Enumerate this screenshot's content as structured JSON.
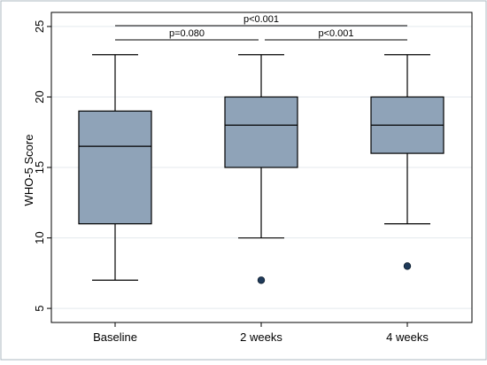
{
  "chart_data": {
    "type": "box",
    "ylabel": "WHO-5 Score",
    "ylim": [
      4,
      26
    ],
    "yticks": [
      5,
      10,
      15,
      20,
      25
    ],
    "grid": true,
    "categories": [
      "Baseline",
      "2 weeks",
      "4 weeks"
    ],
    "boxes": [
      {
        "category": "Baseline",
        "whisker_low": 7,
        "q1": 11,
        "median": 16.5,
        "q3": 19,
        "whisker_high": 23,
        "outliers": []
      },
      {
        "category": "2 weeks",
        "whisker_low": 10,
        "q1": 15,
        "median": 18,
        "q3": 20,
        "whisker_high": 23,
        "outliers": [
          7
        ]
      },
      {
        "category": "4 weeks",
        "whisker_low": 11,
        "q1": 16,
        "median": 18,
        "q3": 20,
        "whisker_high": 23,
        "outliers": [
          8
        ]
      }
    ],
    "comparisons": [
      {
        "from": "Baseline",
        "to": "2 weeks",
        "label": "p=0.080",
        "level": 1
      },
      {
        "from": "2 weeks",
        "to": "4 weeks",
        "label": "p<0.001",
        "level": 1
      },
      {
        "from": "Baseline",
        "to": "4 weeks",
        "label": "p<0.001",
        "level": 2
      }
    ],
    "colors": {
      "box_fill": "#8fa3b8",
      "outlier": "#1f3a5a",
      "grid": "#e4e9ee",
      "frame": "#aeb8c2"
    }
  }
}
